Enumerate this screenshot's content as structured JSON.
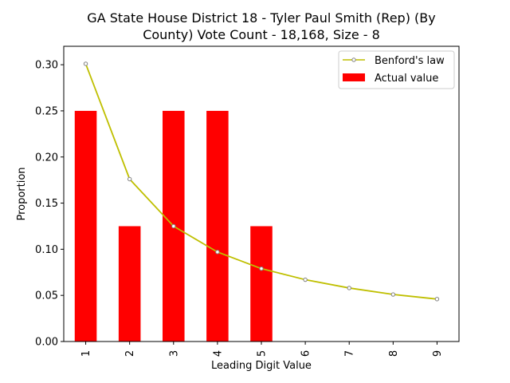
{
  "chart_data": {
    "type": "bar",
    "title_lines": [
      "GA State House District 18 - Tyler Paul Smith (Rep) (By",
      "County) Vote Count - 18,168, Size - 8"
    ],
    "xlabel": "Leading Digit Value",
    "ylabel": "Proportion",
    "categories": [
      "1",
      "2",
      "3",
      "4",
      "5",
      "6",
      "7",
      "8",
      "9"
    ],
    "ylim": [
      0,
      0.32
    ],
    "yticks": [
      "0.00",
      "0.05",
      "0.10",
      "0.15",
      "0.20",
      "0.25",
      "0.30"
    ],
    "legend_position": "top-right",
    "series": [
      {
        "name": "Actual value",
        "kind": "bar",
        "color": "#ff0000",
        "values": [
          0.25,
          0.125,
          0.25,
          0.25,
          0.125,
          0,
          0,
          0,
          0
        ]
      },
      {
        "name": "Benford's law",
        "kind": "line",
        "color": "#bfbf00",
        "marker_color": "#808080",
        "values": [
          0.301,
          0.176,
          0.125,
          0.097,
          0.079,
          0.067,
          0.058,
          0.051,
          0.046
        ]
      }
    ]
  }
}
